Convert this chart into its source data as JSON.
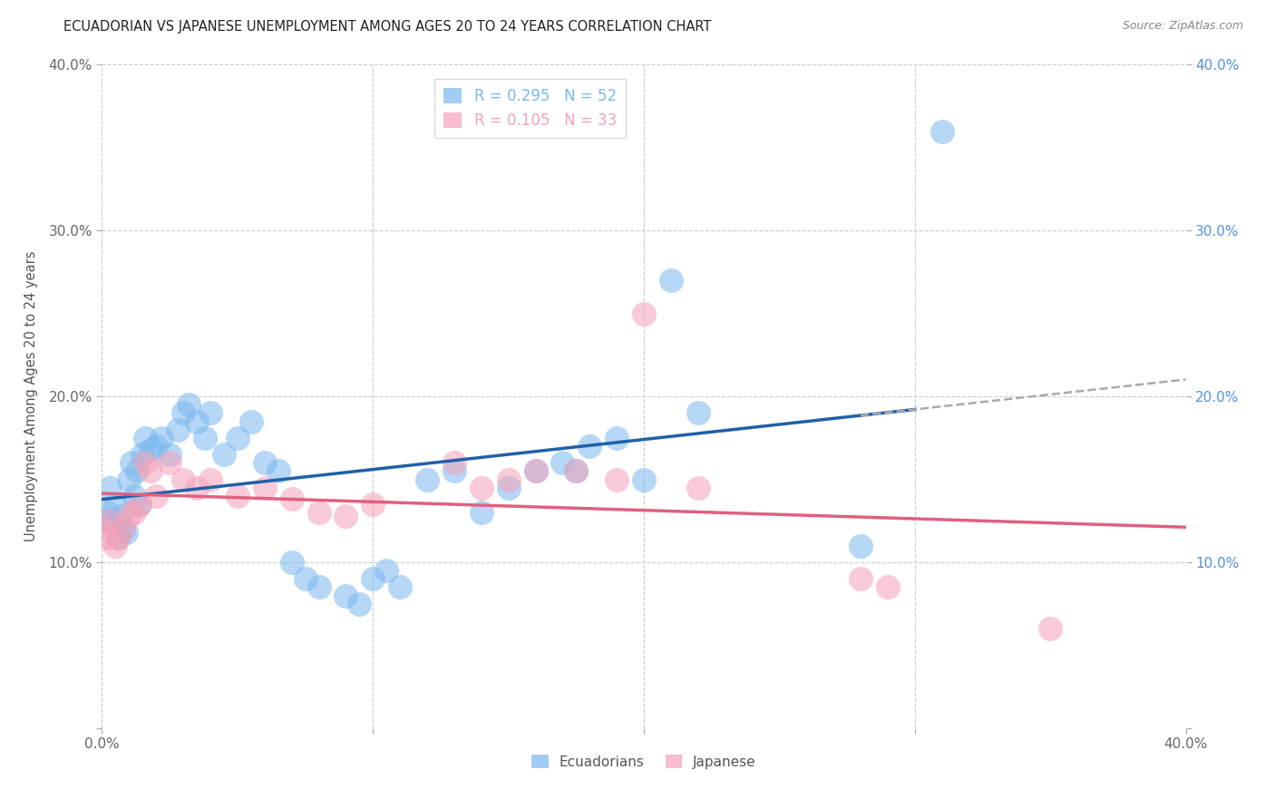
{
  "title": "ECUADORIAN VS JAPANESE UNEMPLOYMENT AMONG AGES 20 TO 24 YEARS CORRELATION CHART",
  "source": "Source: ZipAtlas.com",
  "ylabel": "Unemployment Among Ages 20 to 24 years",
  "xlim": [
    0.0,
    0.4
  ],
  "ylim": [
    0.0,
    0.4
  ],
  "xticks": [
    0.0,
    0.1,
    0.2,
    0.3,
    0.4
  ],
  "yticks": [
    0.0,
    0.1,
    0.2,
    0.3,
    0.4
  ],
  "xticklabels": [
    "0.0%",
    "",
    "",
    "",
    "40.0%"
  ],
  "yticklabels_left": [
    "",
    "10.0%",
    "20.0%",
    "30.0%",
    "40.0%"
  ],
  "yticklabels_right": [
    "",
    "10.0%",
    "20.0%",
    "30.0%",
    "40.0%"
  ],
  "R_ecu": 0.295,
  "N_ecu": 52,
  "R_jap": 0.105,
  "N_jap": 33,
  "ecu_color": "#7ab8f0",
  "jap_color": "#f5a0b8",
  "ecu_line_color": "#2060a8",
  "jap_line_color": "#e06080",
  "dash_color": "#aaaaaa",
  "background_color": "#ffffff",
  "grid_color": "#cccccc",
  "ecu_x": [
    0.001,
    0.002,
    0.003,
    0.005,
    0.006,
    0.007,
    0.008,
    0.009,
    0.01,
    0.011,
    0.012,
    0.013,
    0.014,
    0.015,
    0.016,
    0.018,
    0.02,
    0.022,
    0.025,
    0.028,
    0.03,
    0.032,
    0.035,
    0.038,
    0.04,
    0.045,
    0.05,
    0.055,
    0.06,
    0.065,
    0.07,
    0.075,
    0.08,
    0.09,
    0.095,
    0.1,
    0.105,
    0.11,
    0.12,
    0.13,
    0.14,
    0.15,
    0.16,
    0.17,
    0.175,
    0.18,
    0.19,
    0.2,
    0.21,
    0.22,
    0.28,
    0.31
  ],
  "ecu_y": [
    0.125,
    0.13,
    0.145,
    0.135,
    0.115,
    0.128,
    0.12,
    0.118,
    0.15,
    0.16,
    0.14,
    0.155,
    0.135,
    0.165,
    0.175,
    0.168,
    0.17,
    0.175,
    0.165,
    0.18,
    0.19,
    0.195,
    0.185,
    0.175,
    0.19,
    0.165,
    0.175,
    0.185,
    0.16,
    0.155,
    0.1,
    0.09,
    0.085,
    0.08,
    0.075,
    0.09,
    0.095,
    0.085,
    0.15,
    0.155,
    0.13,
    0.145,
    0.155,
    0.16,
    0.155,
    0.17,
    0.175,
    0.15,
    0.27,
    0.19,
    0.11,
    0.36
  ],
  "jap_x": [
    0.001,
    0.002,
    0.003,
    0.005,
    0.006,
    0.008,
    0.01,
    0.012,
    0.014,
    0.016,
    0.018,
    0.02,
    0.025,
    0.03,
    0.035,
    0.04,
    0.05,
    0.06,
    0.07,
    0.08,
    0.09,
    0.1,
    0.13,
    0.14,
    0.15,
    0.16,
    0.175,
    0.19,
    0.2,
    0.22,
    0.28,
    0.29,
    0.35
  ],
  "jap_y": [
    0.12,
    0.115,
    0.125,
    0.11,
    0.115,
    0.12,
    0.128,
    0.13,
    0.135,
    0.16,
    0.155,
    0.14,
    0.16,
    0.15,
    0.145,
    0.15,
    0.14,
    0.145,
    0.138,
    0.13,
    0.128,
    0.135,
    0.16,
    0.145,
    0.15,
    0.155,
    0.155,
    0.15,
    0.25,
    0.145,
    0.09,
    0.085,
    0.06
  ]
}
